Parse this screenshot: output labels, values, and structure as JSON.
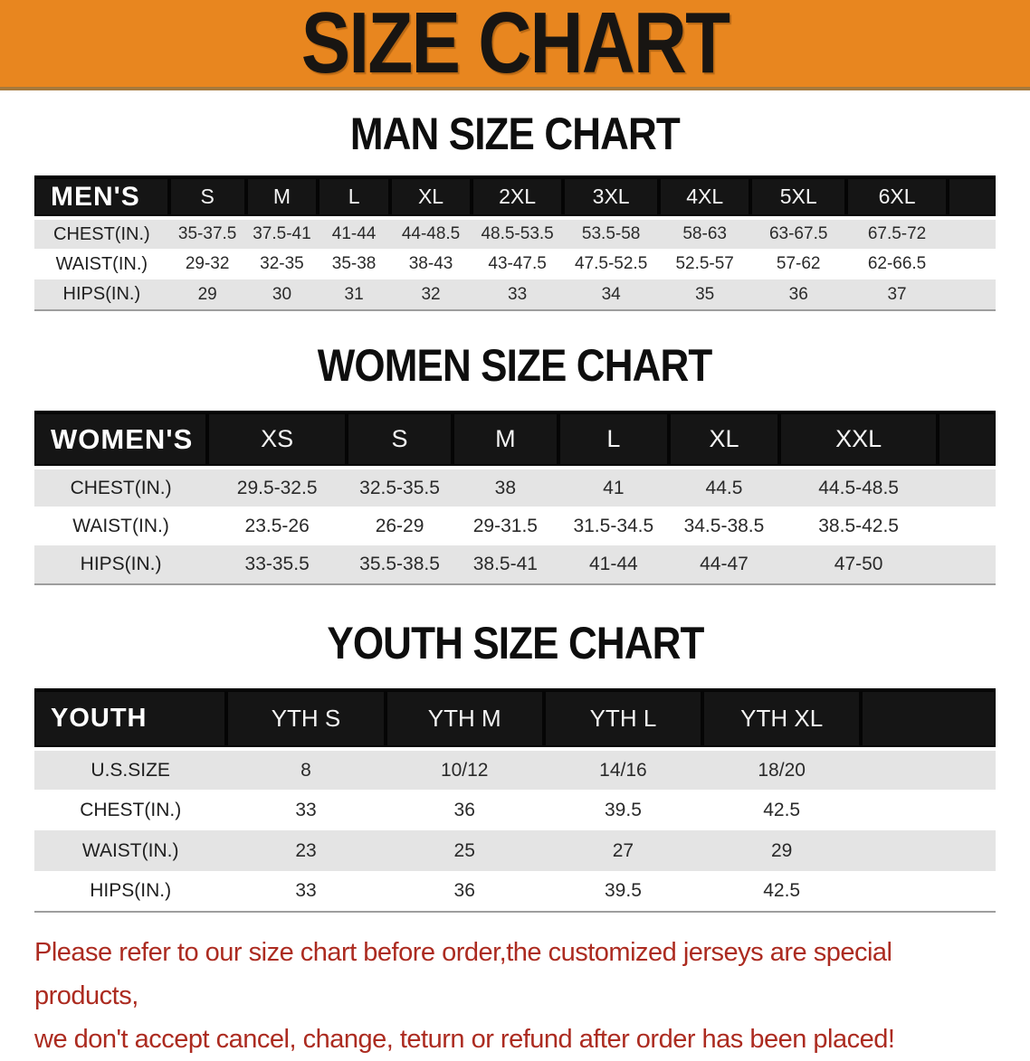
{
  "banner": {
    "title": "SIZE CHART"
  },
  "headings": {
    "man": "MAN SIZE CHART",
    "women": "WOMEN SIZE CHART",
    "youth": "YOUTH SIZE CHART"
  },
  "tables": {
    "men": {
      "corner": "MEN'S",
      "columns": [
        "S",
        "M",
        "L",
        "XL",
        "2XL",
        "3XL",
        "4XL",
        "5XL",
        "6XL"
      ],
      "rows": [
        {
          "label": "CHEST(IN.)",
          "values": [
            "35-37.5",
            "37.5-41",
            "41-44",
            "44-48.5",
            "48.5-53.5",
            "53.5-58",
            "58-63",
            "63-67.5",
            "67.5-72"
          ]
        },
        {
          "label": "WAIST(IN.)",
          "values": [
            "29-32",
            "32-35",
            "35-38",
            "38-43",
            "43-47.5",
            "47.5-52.5",
            "52.5-57",
            "57-62",
            "62-66.5"
          ]
        },
        {
          "label": "HIPS(IN.)",
          "values": [
            "29",
            "30",
            "31",
            "32",
            "33",
            "34",
            "35",
            "36",
            "37"
          ]
        }
      ]
    },
    "women": {
      "corner": "WOMEN'S",
      "columns": [
        "XS",
        "S",
        "M",
        "L",
        "XL",
        "XXL"
      ],
      "rows": [
        {
          "label": "CHEST(IN.)",
          "values": [
            "29.5-32.5",
            "32.5-35.5",
            "38",
            "41",
            "44.5",
            "44.5-48.5"
          ]
        },
        {
          "label": "WAIST(IN.)",
          "values": [
            "23.5-26",
            "26-29",
            "29-31.5",
            "31.5-34.5",
            "34.5-38.5",
            "38.5-42.5"
          ]
        },
        {
          "label": "HIPS(IN.)",
          "values": [
            "33-35.5",
            "35.5-38.5",
            "38.5-41",
            "41-44",
            "44-47",
            "47-50"
          ]
        }
      ]
    },
    "youth": {
      "corner": "YOUTH",
      "columns": [
        "YTH S",
        "YTH M",
        "YTH L",
        "YTH XL"
      ],
      "rows": [
        {
          "label": "U.S.SIZE",
          "values": [
            "8",
            "10/12",
            "14/16",
            "18/20"
          ]
        },
        {
          "label": "CHEST(IN.)",
          "values": [
            "33",
            "36",
            "39.5",
            "42.5"
          ]
        },
        {
          "label": "WAIST(IN.)",
          "values": [
            "23",
            "25",
            "27",
            "29"
          ]
        },
        {
          "label": "HIPS(IN.)",
          "values": [
            "33",
            "36",
            "39.5",
            "42.5"
          ]
        }
      ]
    }
  },
  "footer": {
    "line1": "Please refer to our size chart before order,the customized jerseys are special products,",
    "line2": "we don't accept cancel, change, teturn or refund after order has been placed!"
  },
  "colors": {
    "banner_bg": "#E8861F",
    "bar_bg": "#151515",
    "row_alt_bg": "#E4E4E4",
    "footer_text": "#AC2B20"
  }
}
